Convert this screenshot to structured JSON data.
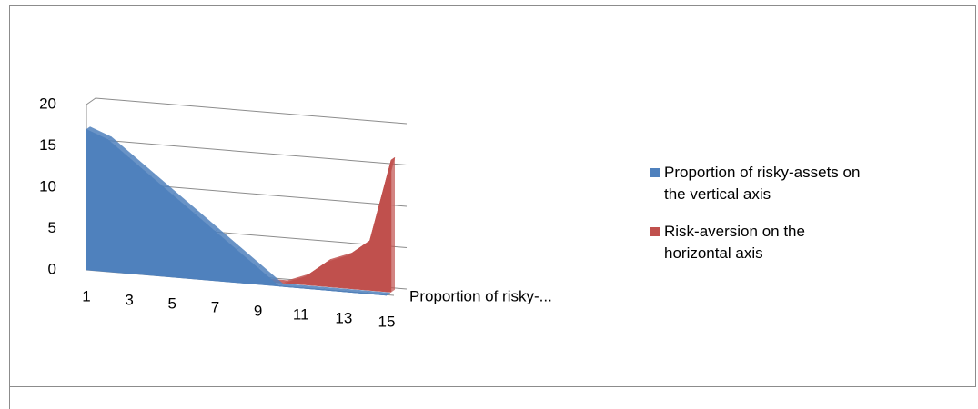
{
  "chart_data": {
    "type": "area3d",
    "categories": [
      "1",
      null,
      "3",
      null,
      "5",
      null,
      "7",
      null,
      "9",
      null,
      "11",
      null,
      "13",
      null,
      "15"
    ],
    "series": [
      {
        "name": "Proportion of risky-assets on the vertical axis",
        "color": "#4f81bd",
        "values": [
          17,
          16,
          14,
          12,
          10,
          8,
          6,
          4,
          2,
          0,
          0,
          0,
          0,
          0,
          0
        ]
      },
      {
        "name": "Risk-aversion on the horizontal axis",
        "color": "#c0504d",
        "values": [
          0,
          0,
          0,
          0,
          0,
          0,
          0,
          0,
          0,
          0,
          1,
          3,
          4,
          6,
          16
        ]
      }
    ],
    "depth_label": "Proportion of risky-...",
    "ylim": [
      0,
      20
    ],
    "yticks": [
      0,
      5,
      10,
      15,
      20
    ],
    "grid": true
  }
}
